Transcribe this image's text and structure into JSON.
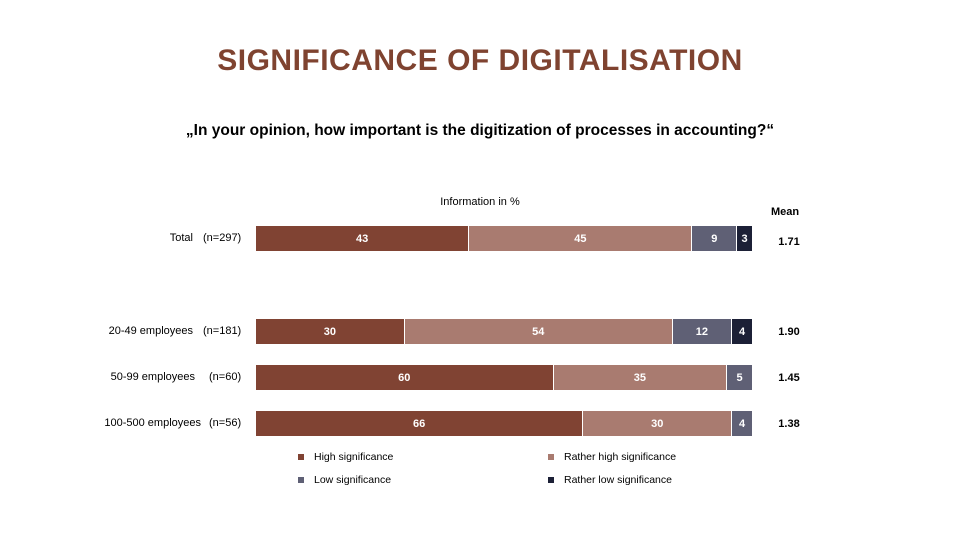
{
  "title": "SIGNIFICANCE OF DIGITALISATION",
  "question": "„In your opinion, how important is the digitization of processes in accounting?“",
  "info_label": "Information in %",
  "mean_header": "Mean",
  "colors": {
    "high": "#804333",
    "rather_high": "#a97b70",
    "low": "#5f6075",
    "rather_low": "#1c2036",
    "title": "#7f4330"
  },
  "chart_data": {
    "type": "bar",
    "orientation": "horizontal",
    "stacked": true,
    "unit": "%",
    "title": "SIGNIFICANCE OF DIGITALISATION",
    "categories": [
      "Total",
      "20-49 employees",
      "50-99 employees",
      "100-500 employees"
    ],
    "sample_sizes": [
      "(n=297)",
      "(n=181)",
      "(n=60)",
      "(n=56)"
    ],
    "means": [
      "1.71",
      "1.90",
      "1.45",
      "1.38"
    ],
    "series": [
      {
        "name": "High significance",
        "values": [
          43,
          30,
          60,
          66
        ]
      },
      {
        "name": "Rather high significance",
        "values": [
          45,
          54,
          35,
          30
        ]
      },
      {
        "name": "Low significance",
        "values": [
          9,
          12,
          5,
          4
        ]
      },
      {
        "name": "Rather low significance",
        "values": [
          3,
          4,
          0,
          0
        ]
      }
    ],
    "legend": [
      "High significance",
      "Rather high significance",
      "Low significance",
      "Rather low significance"
    ]
  }
}
